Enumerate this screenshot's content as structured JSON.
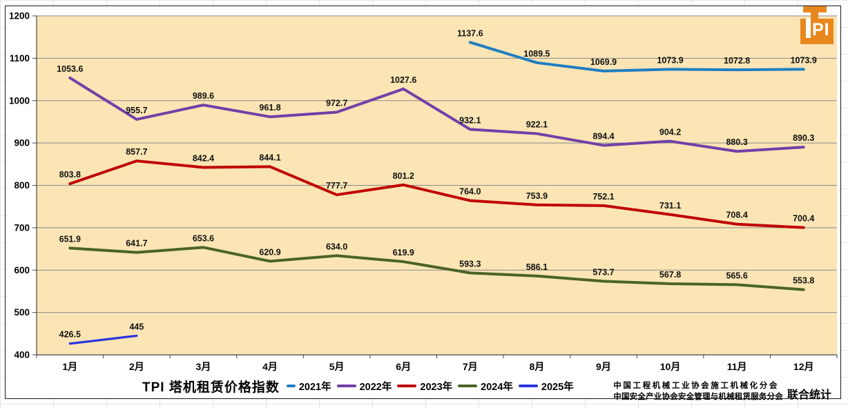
{
  "logo": {
    "name": "TPI",
    "letters_in_box": "PI"
  },
  "chart_data": {
    "type": "line",
    "title": "TPI 塔机租赁价格指数",
    "xlabel": "",
    "ylabel": "",
    "categories": [
      "1月",
      "2月",
      "3月",
      "4月",
      "5月",
      "6月",
      "7月",
      "8月",
      "9月",
      "10月",
      "11月",
      "12月"
    ],
    "ylim": [
      400,
      1200
    ],
    "yticks": [
      400,
      500,
      600,
      700,
      800,
      900,
      1000,
      1100,
      1200
    ],
    "grid": "horizontal",
    "legend_position": "bottom",
    "plot_background": "#FBE5B5",
    "series": [
      {
        "name": "2021年",
        "color": "#1F7EC2",
        "start_index": 6,
        "values": [
          "1137.6",
          "1089.5",
          "1069.9",
          "1073.9",
          "1072.8",
          "1073.9"
        ]
      },
      {
        "name": "2022年",
        "color": "#7240A8",
        "start_index": 0,
        "values": [
          "1053.6",
          "955.7",
          "989.6",
          "961.8",
          "972.7",
          "1027.6",
          "932.1",
          "922.1",
          "894.4",
          "904.2",
          "880.3",
          "890.3"
        ]
      },
      {
        "name": "2023年",
        "color": "#C00000",
        "start_index": 0,
        "values": [
          "803.8",
          "857.7",
          "842.4",
          "844.1",
          "777.7",
          "801.2",
          "764.0",
          "753.9",
          "752.1",
          "731.1",
          "708.4",
          "700.4"
        ]
      },
      {
        "name": "2024年",
        "color": "#4A6428",
        "start_index": 0,
        "values": [
          "651.9",
          "641.7",
          "653.6",
          "620.9",
          "634.0",
          "619.9",
          "593.3",
          "586.1",
          "573.7",
          "567.8",
          "565.6",
          "553.8"
        ]
      },
      {
        "name": "2025年",
        "color": "#2B35DF",
        "start_index": 0,
        "values": [
          "426.5",
          "445"
        ]
      }
    ]
  },
  "footer": {
    "line1": "中国工程机械工业协会施工机械化分会",
    "line2": "中国安全产业协会安全管理与机械租赁服务分会",
    "joint": "联合统计"
  }
}
